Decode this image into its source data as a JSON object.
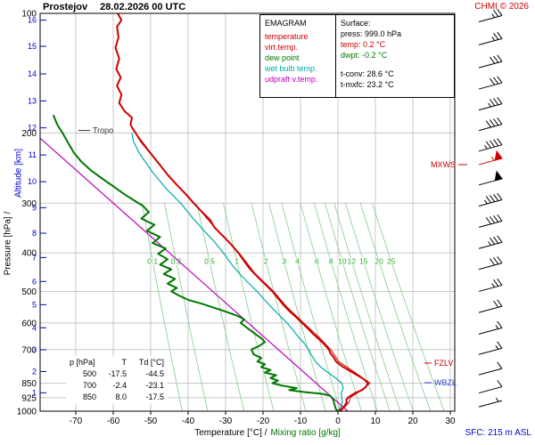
{
  "header": {
    "station": "Prostejov",
    "datetime": "28.02.2026 00 UTC",
    "copyright": "CHMI © 2026"
  },
  "legend": {
    "title": "EMAGRAM",
    "items": [
      {
        "label": "temperature",
        "color": "#cc0000"
      },
      {
        "label": "virt.temp.",
        "color": "#cc0000"
      },
      {
        "label": "dew point",
        "color": "#007700"
      },
      {
        "label": "wet bulb temp.",
        "color": "#00aaaa"
      },
      {
        "label": "udpraft v.temp.",
        "color": "#bb00bb"
      }
    ]
  },
  "surface_panel": {
    "title": "Surface:",
    "rows": [
      {
        "text": "press: 999.0 hPa",
        "color": "#000000"
      },
      {
        "text": "temp: 0.2 °C",
        "color": "#cc0000"
      },
      {
        "text": "dwpt: -0.2 °C",
        "color": "#007700"
      },
      {
        "text": "t-conv: 28.6 °C",
        "color": "#000000"
      },
      {
        "text": "t-mxfc: 23.2 °C",
        "color": "#000000"
      }
    ]
  },
  "axis_labels": {
    "bottom_black": "Temperature [°C] /",
    "bottom_green": "Mixing ratio [g/kg]",
    "left_black": "Pressure [hPa] /",
    "left_blue": "Altitude [km]",
    "sfc": "SFC: 215 m ASL"
  },
  "levels_table": {
    "header": [
      "p [hPa]",
      "T",
      "Td [°C]"
    ],
    "rows": [
      [
        "500",
        "-17.5",
        "-44.5"
      ],
      [
        "700",
        "-2.4",
        "-23.1"
      ],
      [
        "850",
        "8.0",
        "-17.5"
      ]
    ]
  },
  "markers": {
    "tropo": {
      "label": "Tropo",
      "p": 197,
      "color": "#333333"
    },
    "mxws": {
      "label": "MXWS",
      "p": 240,
      "color": "#cc0000"
    },
    "fzlv": {
      "label": "FZLV",
      "p": 757,
      "color": "#cc0000"
    },
    "wbzl": {
      "label": "WBZL",
      "p": 848,
      "color": "#3344cc"
    }
  },
  "colors": {
    "grid": "#c8c8c8",
    "axis": "#000000",
    "altitude": "#0000cc",
    "mixing": "#88cc88",
    "mixing_label": "#22aa22",
    "barb": "#000000",
    "barb_max": "#cc0000"
  },
  "chart_data": {
    "type": "line",
    "title": "Prostejov 28.02.2026 00 UTC EMAGRAM sounding",
    "xlabel": "Temperature [°C] / Mixing ratio [g/kg]",
    "ylabel": "Pressure [hPa] / Altitude [km]",
    "x_range_degC": [
      -79.5,
      31.2
    ],
    "pressure_range_hPa": [
      100,
      1000
    ],
    "grid": true,
    "station_elevation_m": 215,
    "tropopause_hPa": 197,
    "surface": {
      "press_hPa": 999.0,
      "temp_C": 0.2,
      "dwpt_C": -0.2,
      "t_conv_C": 28.6,
      "t_mxfc_C": 23.2
    },
    "pressure_ticks": [
      100,
      200,
      300,
      400,
      500,
      600,
      700,
      850,
      925,
      1000
    ],
    "pressure_gridlines": [
      200,
      300,
      400,
      500,
      600,
      700,
      850,
      925
    ],
    "temp_ticks": [
      -70,
      -60,
      -50,
      -40,
      -30,
      -20,
      -10,
      0,
      10,
      20,
      30
    ],
    "altitude_ticks": [
      {
        "km": 1,
        "p": 899
      },
      {
        "km": 2,
        "p": 795
      },
      {
        "km": 3,
        "p": 701
      },
      {
        "km": 4,
        "p": 617
      },
      {
        "km": 5,
        "p": 540
      },
      {
        "km": 6,
        "p": 472
      },
      {
        "km": 7,
        "p": 411
      },
      {
        "km": 8,
        "p": 357
      },
      {
        "km": 9,
        "p": 308
      },
      {
        "km": 10,
        "p": 265
      },
      {
        "km": 11,
        "p": 227
      },
      {
        "km": 12,
        "p": 194
      },
      {
        "km": 13,
        "p": 166
      },
      {
        "km": 14,
        "p": 142
      },
      {
        "km": 15,
        "p": 121
      },
      {
        "km": 16,
        "p": 104
      }
    ],
    "mixing_ratio_lines": [
      0.1,
      0.2,
      0.5,
      1,
      2,
      3,
      4,
      6,
      8,
      10,
      12,
      15,
      20,
      25
    ],
    "series": [
      {
        "id": "wet_bulb",
        "name": "wet bulb temp.",
        "color": "#00aaaa",
        "width": 1.2,
        "points": [
          [
            999,
            0.0
          ],
          [
            975,
            0.8
          ],
          [
            950,
            1.2
          ],
          [
            925,
            1.0
          ],
          [
            900,
            0.9
          ],
          [
            875,
            1.4
          ],
          [
            850,
            1.0
          ],
          [
            825,
            -0.6
          ],
          [
            800,
            -2.6
          ],
          [
            775,
            -4.6
          ],
          [
            750,
            -6.0
          ],
          [
            725,
            -7.0
          ],
          [
            700,
            -7.8
          ],
          [
            675,
            -9.0
          ],
          [
            650,
            -10.6
          ],
          [
            625,
            -12.0
          ],
          [
            600,
            -13.6
          ],
          [
            575,
            -15.6
          ],
          [
            550,
            -17.6
          ],
          [
            525,
            -19.6
          ],
          [
            500,
            -21.6
          ],
          [
            475,
            -24.0
          ],
          [
            450,
            -26.4
          ],
          [
            425,
            -28.6
          ],
          [
            400,
            -30.6
          ],
          [
            375,
            -33.0
          ],
          [
            350,
            -36.0
          ],
          [
            325,
            -39.0
          ],
          [
            300,
            -42.0
          ],
          [
            275,
            -46.0
          ],
          [
            250,
            -49.6
          ],
          [
            225,
            -53.0
          ],
          [
            210,
            -54.6
          ],
          [
            200,
            -55.0
          ]
        ]
      },
      {
        "id": "updraft",
        "name": "udpraft v.temp.",
        "color": "#bb00bb",
        "width": 1.2,
        "points": [
          [
            1000,
            2.6
          ],
          [
            206,
            -79.5
          ]
        ]
      },
      {
        "id": "virt_temp",
        "name": "virt.temp.",
        "color": "#cc0000",
        "width": 1,
        "points": [
          [
            999,
            0.8
          ],
          [
            950,
            3.0
          ],
          [
            925,
            3.2
          ],
          [
            900,
            5.2
          ],
          [
            850,
            8.6
          ],
          [
            800,
            4.6
          ],
          [
            750,
            0.2
          ],
          [
            700,
            -1.9
          ],
          [
            650,
            -5.2
          ],
          [
            600,
            -9.2
          ],
          [
            550,
            -13.4
          ],
          [
            500,
            -17.2
          ],
          [
            450,
            -22.2
          ],
          [
            400,
            -26.4
          ],
          [
            350,
            -32.4
          ],
          [
            300,
            -38.4
          ],
          [
            250,
            -46.2
          ],
          [
            200,
            -54.0
          ]
        ]
      },
      {
        "id": "dew_point",
        "name": "dew point",
        "color": "#007700",
        "width": 2,
        "points": [
          [
            999,
            -0.2
          ],
          [
            985,
            -0.6
          ],
          [
            970,
            -0.8
          ],
          [
            955,
            -1.0
          ],
          [
            940,
            -1.2
          ],
          [
            925,
            -1.6
          ],
          [
            915,
            -2.0
          ],
          [
            905,
            -4.0
          ],
          [
            895,
            -9.0
          ],
          [
            885,
            -13.0
          ],
          [
            875,
            -11.0
          ],
          [
            862,
            -15.0
          ],
          [
            850,
            -17.5
          ],
          [
            838,
            -16.0
          ],
          [
            825,
            -18.0
          ],
          [
            812,
            -16.5
          ],
          [
            800,
            -19.5
          ],
          [
            788,
            -18.0
          ],
          [
            775,
            -20.5
          ],
          [
            762,
            -19.5
          ],
          [
            750,
            -21.5
          ],
          [
            735,
            -20.5
          ],
          [
            720,
            -22.5
          ],
          [
            700,
            -23.1
          ],
          [
            685,
            -21.0
          ],
          [
            670,
            -19.5
          ],
          [
            655,
            -20.5
          ],
          [
            640,
            -22.0
          ],
          [
            625,
            -23.5
          ],
          [
            610,
            -25.0
          ],
          [
            600,
            -26.0
          ],
          [
            588,
            -25.0
          ],
          [
            575,
            -27.0
          ],
          [
            562,
            -30.0
          ],
          [
            550,
            -33.0
          ],
          [
            538,
            -36.0
          ],
          [
            525,
            -40.0
          ],
          [
            512,
            -42.5
          ],
          [
            500,
            -44.5
          ],
          [
            490,
            -43.0
          ],
          [
            478,
            -45.5
          ],
          [
            465,
            -43.5
          ],
          [
            452,
            -46.5
          ],
          [
            440,
            -44.5
          ],
          [
            428,
            -47.5
          ],
          [
            415,
            -45.5
          ],
          [
            402,
            -48.0
          ],
          [
            390,
            -46.0
          ],
          [
            378,
            -49.5
          ],
          [
            365,
            -47.5
          ],
          [
            352,
            -51.0
          ],
          [
            340,
            -49.0
          ],
          [
            328,
            -52.5
          ],
          [
            316,
            -50.5
          ],
          [
            305,
            -52.0
          ],
          [
            295,
            -54.5
          ],
          [
            285,
            -57.0
          ],
          [
            272,
            -60.0
          ],
          [
            260,
            -63.0
          ],
          [
            248,
            -66.0
          ],
          [
            236,
            -68.5
          ],
          [
            224,
            -70.5
          ],
          [
            212,
            -72.0
          ],
          [
            200,
            -73.5
          ],
          [
            190,
            -75.0
          ],
          [
            180,
            -76.0
          ]
        ]
      },
      {
        "id": "temperature",
        "name": "temperature",
        "color": "#cc0000",
        "width": 2,
        "points": [
          [
            999,
            0.2
          ],
          [
            990,
            0.8
          ],
          [
            975,
            1.6
          ],
          [
            960,
            2.0
          ],
          [
            950,
            2.4
          ],
          [
            938,
            2.2
          ],
          [
            925,
            2.6
          ],
          [
            912,
            3.6
          ],
          [
            900,
            4.6
          ],
          [
            885,
            6.4
          ],
          [
            870,
            7.4
          ],
          [
            850,
            8.0
          ],
          [
            832,
            7.0
          ],
          [
            812,
            5.2
          ],
          [
            792,
            3.2
          ],
          [
            772,
            1.2
          ],
          [
            752,
            -0.4
          ],
          [
            732,
            -1.2
          ],
          [
            715,
            -2.0
          ],
          [
            700,
            -2.4
          ],
          [
            680,
            -3.6
          ],
          [
            660,
            -5.0
          ],
          [
            640,
            -6.6
          ],
          [
            620,
            -8.0
          ],
          [
            600,
            -9.6
          ],
          [
            580,
            -11.2
          ],
          [
            560,
            -13.0
          ],
          [
            540,
            -14.6
          ],
          [
            520,
            -16.0
          ],
          [
            500,
            -17.5
          ],
          [
            480,
            -19.4
          ],
          [
            460,
            -21.4
          ],
          [
            440,
            -23.4
          ],
          [
            420,
            -25.0
          ],
          [
            400,
            -26.6
          ],
          [
            380,
            -28.6
          ],
          [
            362,
            -30.8
          ],
          [
            345,
            -33.0
          ],
          [
            330,
            -34.2
          ],
          [
            315,
            -36.4
          ],
          [
            300,
            -38.5
          ],
          [
            285,
            -40.6
          ],
          [
            270,
            -43.0
          ],
          [
            255,
            -45.4
          ],
          [
            240,
            -47.6
          ],
          [
            225,
            -50.0
          ],
          [
            210,
            -52.6
          ],
          [
            200,
            -54.0
          ],
          [
            195,
            -54.8
          ],
          [
            190,
            -55.4
          ],
          [
            183,
            -55.0
          ],
          [
            176,
            -57.0
          ],
          [
            168,
            -58.4
          ],
          [
            160,
            -57.8
          ],
          [
            152,
            -59.0
          ],
          [
            145,
            -58.0
          ],
          [
            138,
            -59.2
          ],
          [
            130,
            -58.4
          ],
          [
            122,
            -59.4
          ],
          [
            115,
            -58.6
          ],
          [
            108,
            -59.0
          ],
          [
            104,
            -57.8
          ],
          [
            100,
            -58.8
          ]
        ]
      }
    ],
    "wind_barbs": [
      {
        "p": 105,
        "kt": 25
      },
      {
        "p": 120,
        "kt": 25
      },
      {
        "p": 137,
        "kt": 30
      },
      {
        "p": 155,
        "kt": 30
      },
      {
        "p": 175,
        "kt": 35
      },
      {
        "p": 197,
        "kt": 40
      },
      {
        "p": 222,
        "kt": 45
      },
      {
        "p": 240,
        "kt": 55,
        "max": true
      },
      {
        "p": 270,
        "kt": 50
      },
      {
        "p": 305,
        "kt": 45
      },
      {
        "p": 345,
        "kt": 40
      },
      {
        "p": 390,
        "kt": 35
      },
      {
        "p": 440,
        "kt": 30
      },
      {
        "p": 500,
        "kt": 25
      },
      {
        "p": 565,
        "kt": 20
      },
      {
        "p": 640,
        "kt": 15
      },
      {
        "p": 720,
        "kt": 15
      },
      {
        "p": 810,
        "kt": 10
      },
      {
        "p": 900,
        "kt": 10
      },
      {
        "p": 975,
        "kt": 5
      }
    ]
  }
}
